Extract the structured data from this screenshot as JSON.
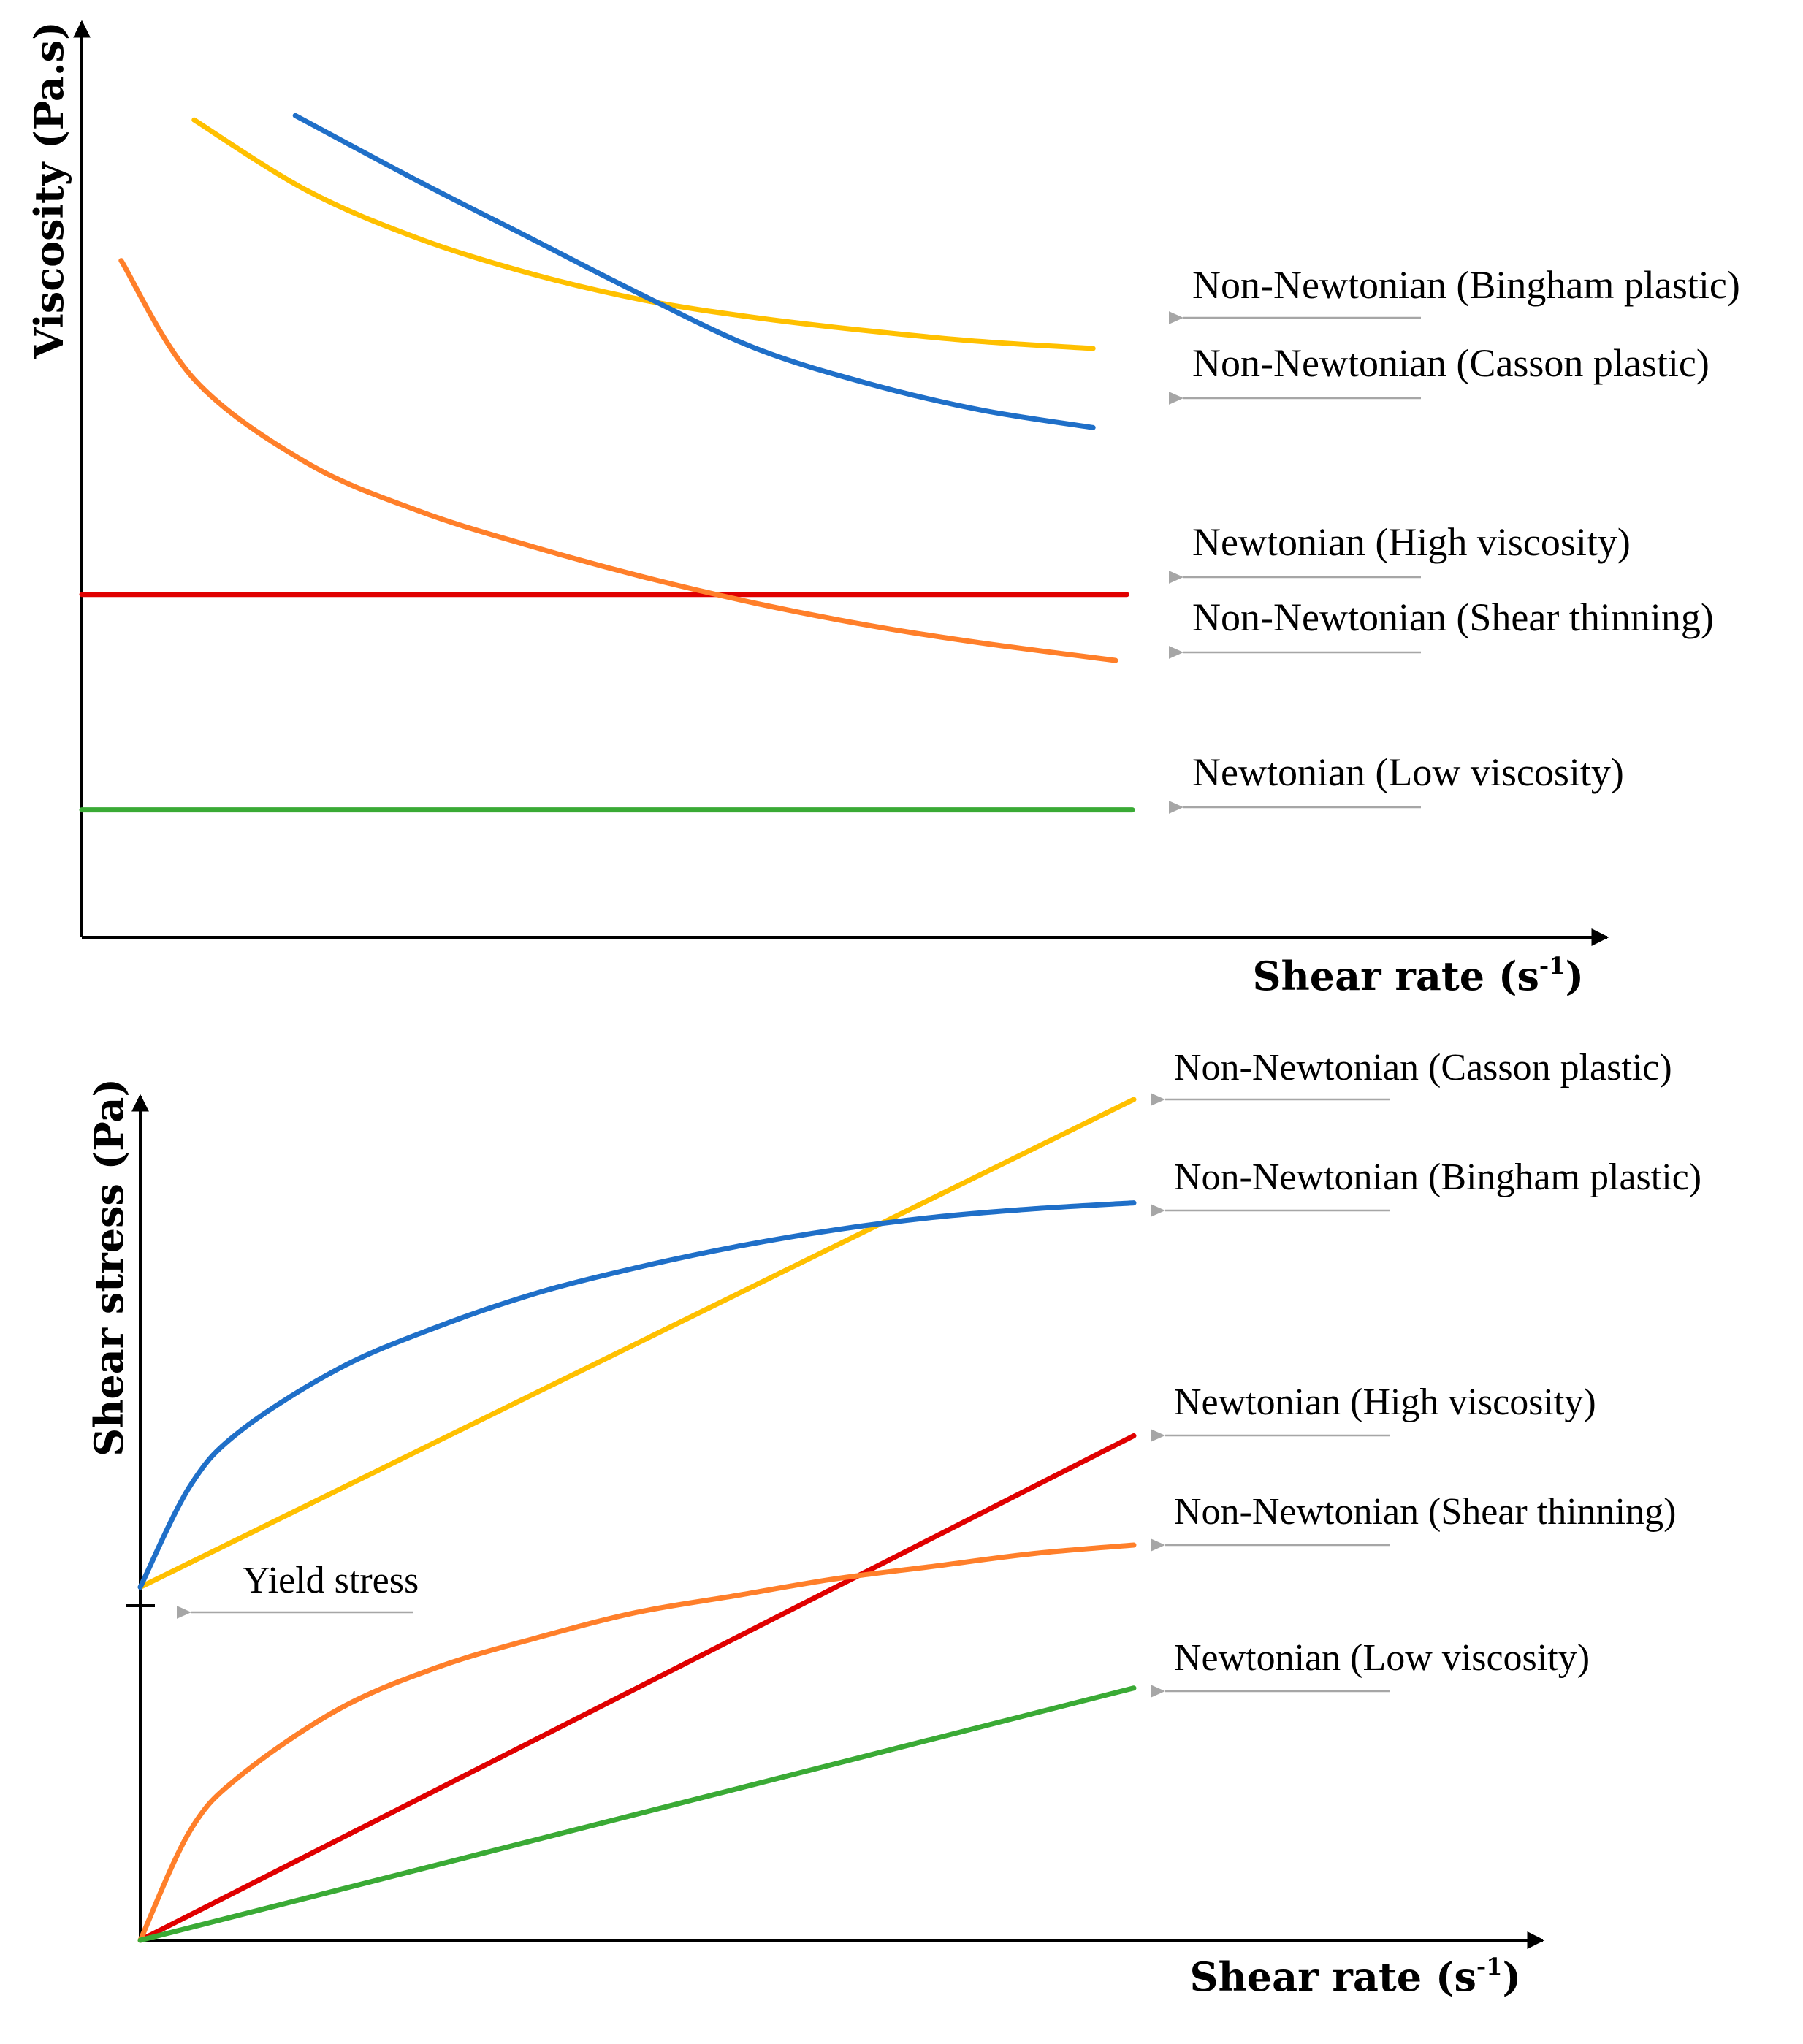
{
  "chart_data": [
    {
      "type": "line",
      "title": "",
      "xlabel": "Shear rate (s-1)",
      "xlabel_main": "Shear rate (s",
      "xlabel_sup": "-1",
      "xlabel_close": ")",
      "ylabel": "Viscosity (Pa.s)",
      "xlim": [
        0,
        10
      ],
      "ylim": [
        0,
        10
      ],
      "grid": false,
      "axis_color": "#000000",
      "series": [
        {
          "id": "bingham",
          "name": "Non-Newtonian (Bingham plastic)",
          "color": "#FFC000",
          "x": [
            1.0,
            2.0,
            3.0,
            4.0,
            5.0,
            6.0,
            7.0,
            8.0,
            9.0
          ],
          "y": [
            9.3,
            8.5,
            7.95,
            7.55,
            7.25,
            7.05,
            6.9,
            6.78,
            6.7
          ]
        },
        {
          "id": "casson",
          "name": "Non-Newtonian (Casson plastic)",
          "color": "#1F6FC8",
          "x": [
            1.9,
            3.0,
            4.0,
            5.0,
            6.0,
            7.0,
            8.0,
            9.0
          ],
          "y": [
            9.35,
            8.6,
            7.95,
            7.3,
            6.7,
            6.3,
            6.0,
            5.8
          ]
        },
        {
          "id": "newtonian-high",
          "name": "Newtonian (High viscosity)",
          "color": "#E00000",
          "x": [
            0.0,
            9.3
          ],
          "y": [
            3.9,
            3.9
          ]
        },
        {
          "id": "shear-thinning",
          "name": "Non-Newtonian (Shear thinning)",
          "color": "#FF7F2A",
          "x": [
            0.35,
            1.0,
            2.0,
            3.0,
            4.0,
            5.0,
            6.0,
            7.0,
            8.0,
            9.2
          ],
          "y": [
            7.7,
            6.35,
            5.4,
            4.85,
            4.45,
            4.1,
            3.8,
            3.55,
            3.35,
            3.15
          ]
        },
        {
          "id": "newtonian-low",
          "name": "Newtonian (Low viscosity)",
          "color": "#3AAA35",
          "x": [
            0.0,
            9.35
          ],
          "y": [
            1.45,
            1.45
          ]
        }
      ]
    },
    {
      "type": "line",
      "title": "",
      "xlabel": "Shear rate (s-1)",
      "xlabel_main": "Shear rate (s",
      "xlabel_sup": "-1",
      "xlabel_close": ")",
      "ylabel": "Shear stress (Pa)",
      "xlim": [
        0,
        10
      ],
      "ylim": [
        0,
        10
      ],
      "grid": false,
      "axis_color": "#000000",
      "annotation": {
        "text": "Yield stress",
        "x": 0,
        "y": 4.2
      },
      "series": [
        {
          "id": "casson",
          "name": "Non-Newtonian (Casson plastic)",
          "color": "#FFC000",
          "x": [
            0.0,
            10.0
          ],
          "y": [
            4.2,
            10.0
          ]
        },
        {
          "id": "bingham",
          "name": "Non-Newtonian (Bingham plastic)",
          "color": "#1F6FC8",
          "x": [
            0.0,
            0.5,
            1.0,
            2.0,
            3.0,
            4.0,
            5.0,
            6.0,
            7.0,
            8.0,
            9.0,
            10.0
          ],
          "y": [
            4.2,
            5.4,
            6.05,
            6.8,
            7.3,
            7.7,
            8.0,
            8.25,
            8.45,
            8.6,
            8.7,
            8.77
          ]
        },
        {
          "id": "newtonian-high",
          "name": "Newtonian (High viscosity)",
          "color": "#E00000",
          "x": [
            0.0,
            10.0
          ],
          "y": [
            0.0,
            6.0
          ]
        },
        {
          "id": "shear-thinning",
          "name": "Non-Newtonian (Shear thinning)",
          "color": "#FF7F2A",
          "x": [
            0.0,
            0.5,
            1.0,
            2.0,
            3.0,
            4.0,
            5.0,
            6.0,
            7.0,
            8.0,
            9.0,
            10.0
          ],
          "y": [
            0.0,
            1.3,
            1.95,
            2.75,
            3.25,
            3.6,
            3.9,
            4.1,
            4.3,
            4.45,
            4.6,
            4.7
          ]
        },
        {
          "id": "newtonian-low",
          "name": "Newtonian (Low viscosity)",
          "color": "#3AAA35",
          "x": [
            0.0,
            10.0
          ],
          "y": [
            0.0,
            3.0
          ]
        }
      ]
    }
  ]
}
